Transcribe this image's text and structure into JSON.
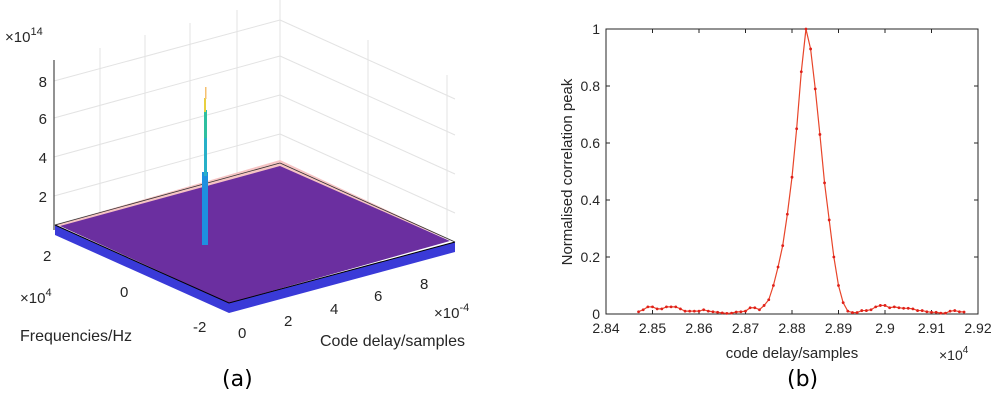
{
  "chart_data": [
    {
      "type": "surface3d",
      "caption": "(a)",
      "xlabel": "Code delay/samples",
      "ylabel": "Frequencies/Hz",
      "zlabel": "",
      "x_exponent": "×10",
      "x_exponent_power": "-4",
      "y_exponent": "×10",
      "y_exponent_power": "4",
      "z_exponent": "×10",
      "z_exponent_power": "14",
      "x_ticks": [
        "0",
        "2",
        "4",
        "6",
        "8"
      ],
      "y_ticks": [
        "2",
        "0",
        "-2"
      ],
      "z_ticks": [
        "8",
        "6",
        "4",
        "2"
      ],
      "peak_value": 7.5,
      "grid": true,
      "colormap": "parula",
      "colors": {
        "floor": "#6b2fa0",
        "base": "#3a3ad8",
        "peak_top": "#f5d040",
        "peak_mid": "#2fbf9f",
        "peak_low": "#1e90e0",
        "edge": "#f6c4c4"
      }
    },
    {
      "type": "line",
      "caption": "(b)",
      "xlabel": "code delay/samples",
      "ylabel": "Normalised correlation peak",
      "x_exponent": "×10",
      "x_exponent_power": "4",
      "xlim": [
        2.84,
        2.92
      ],
      "ylim": [
        0,
        1
      ],
      "x_ticks": [
        "2.84",
        "2.85",
        "2.86",
        "2.87",
        "2.88",
        "2.89",
        "2.9",
        "2.91",
        "2.92"
      ],
      "y_ticks": [
        "0",
        "0.2",
        "0.4",
        "0.6",
        "0.8",
        "1"
      ],
      "grid": false,
      "color": "#e8452a",
      "x_start": 2.847,
      "x_step": 0.001,
      "values": [
        0.008,
        0.015,
        0.025,
        0.025,
        0.018,
        0.018,
        0.025,
        0.025,
        0.025,
        0.018,
        0.01,
        0.01,
        0.01,
        0.01,
        0.015,
        0.01,
        0.008,
        0.006,
        0.004,
        0.002,
        0.003,
        0.007,
        0.008,
        0.01,
        0.022,
        0.022,
        0.015,
        0.03,
        0.05,
        0.1,
        0.165,
        0.24,
        0.35,
        0.48,
        0.65,
        0.85,
        1.0,
        0.93,
        0.79,
        0.63,
        0.46,
        0.33,
        0.2,
        0.1,
        0.04,
        0.01,
        0.005,
        0.005,
        0.012,
        0.012,
        0.015,
        0.025,
        0.03,
        0.03,
        0.022,
        0.025,
        0.022,
        0.02,
        0.02,
        0.018,
        0.012,
        0.012,
        0.008,
        0.006,
        0.006,
        0.003,
        0.003,
        0.01,
        0.012,
        0.008,
        0.007
      ]
    }
  ]
}
